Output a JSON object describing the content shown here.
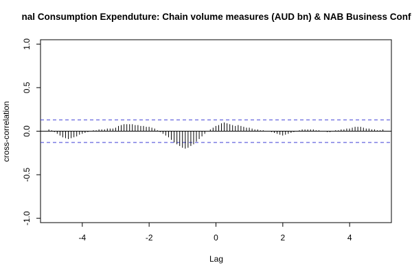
{
  "chart_data": {
    "type": "bar",
    "title": "nal Consumption Expenduture: Chain volume measures (AUD bn) & NAB Business Conf",
    "xlabel": "Lag",
    "ylabel": "cross-correlation",
    "xlim": [
      -5.25,
      5.25
    ],
    "ylim": [
      -1.05,
      1.05
    ],
    "x_ticks": [
      -4,
      -2,
      0,
      2,
      4
    ],
    "y_ticks": [
      -1.0,
      -0.5,
      0.0,
      0.5,
      1.0
    ],
    "confidence_band": 0.13,
    "lag_start": -5.0,
    "lag_step": 0.0833,
    "values": [
      0.02,
      0.01,
      -0.01,
      -0.03,
      -0.05,
      -0.07,
      -0.08,
      -0.09,
      -0.08,
      -0.07,
      -0.06,
      -0.04,
      -0.03,
      -0.02,
      -0.01,
      0.0,
      0.01,
      0.01,
      0.02,
      0.02,
      0.02,
      0.03,
      0.03,
      0.03,
      0.04,
      0.06,
      0.07,
      0.08,
      0.08,
      0.08,
      0.08,
      0.07,
      0.07,
      0.06,
      0.06,
      0.05,
      0.05,
      0.04,
      0.03,
      0.01,
      -0.01,
      -0.03,
      -0.05,
      -0.07,
      -0.1,
      -0.13,
      -0.15,
      -0.17,
      -0.19,
      -0.2,
      -0.19,
      -0.17,
      -0.15,
      -0.12,
      -0.09,
      -0.06,
      -0.03,
      0.0,
      0.02,
      0.04,
      0.06,
      0.07,
      0.09,
      0.1,
      0.09,
      0.08,
      0.07,
      0.06,
      0.07,
      0.06,
      0.05,
      0.04,
      0.04,
      0.03,
      0.02,
      0.02,
      0.01,
      0.01,
      0.0,
      0.0,
      -0.01,
      -0.02,
      -0.03,
      -0.04,
      -0.05,
      -0.04,
      -0.03,
      -0.02,
      -0.01,
      0.0,
      0.01,
      0.02,
      0.02,
      0.02,
      0.02,
      0.02,
      0.01,
      0.01,
      0.0,
      0.0,
      -0.01,
      -0.01,
      0.0,
      0.01,
      0.01,
      0.02,
      0.02,
      0.03,
      0.03,
      0.04,
      0.05,
      0.05,
      0.05,
      0.04,
      0.03,
      0.03,
      0.02,
      0.02,
      0.01,
      0.01,
      0.02
    ]
  }
}
